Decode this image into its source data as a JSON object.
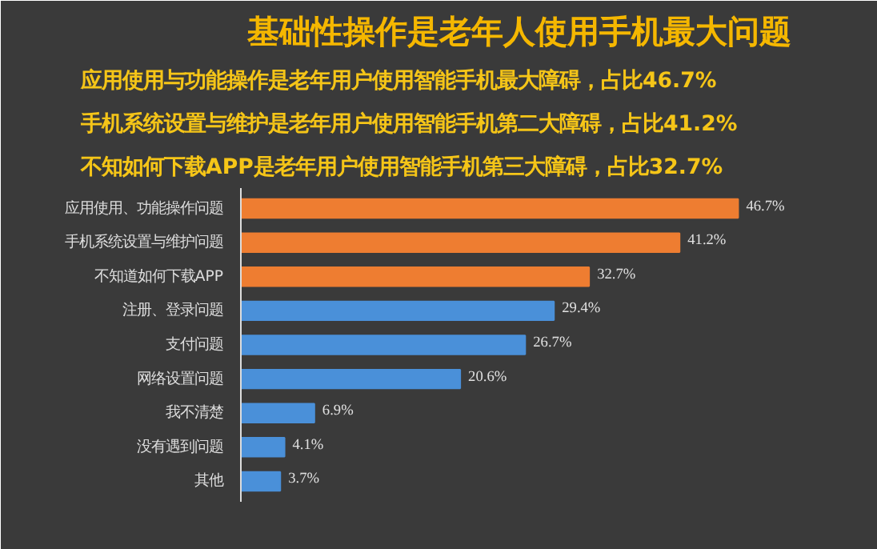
{
  "chart_data": {
    "type": "bar",
    "orientation": "horizontal",
    "title": "基础性操作是老年人使用手机最大问题",
    "annotations": [
      "应用使用与功能操作是老年用户使用智能手机最大障碍，占比46.7%",
      "手机系统设置与维护是老年用户使用智能手机第二大障碍，占比41.2%",
      "不知如何下载APP是老年用户使用智能手机第三大障碍，占比32.7%"
    ],
    "categories": [
      "应用使用、功能操作问题",
      "手机系统设置与维护问题",
      "不知道如何下载APP",
      "注册、登录问题",
      "支付问题",
      "网络设置问题",
      "我不清楚",
      "没有遇到问题",
      "其他"
    ],
    "values": [
      46.7,
      41.2,
      32.7,
      29.4,
      26.7,
      20.6,
      6.9,
      4.1,
      3.7
    ],
    "colors": [
      "#ee7d31",
      "#ee7d31",
      "#ee7d31",
      "#4a90d9",
      "#4a90d9",
      "#4a90d9",
      "#4a90d9",
      "#4a90d9",
      "#4a90d9"
    ],
    "value_labels": [
      "46.7%",
      "41.2%",
      "32.7%",
      "29.4%",
      "26.7%",
      "20.6%",
      "6.9%",
      "4.1%",
      "3.7%"
    ],
    "tick_labels": "y",
    "grid": false
  }
}
